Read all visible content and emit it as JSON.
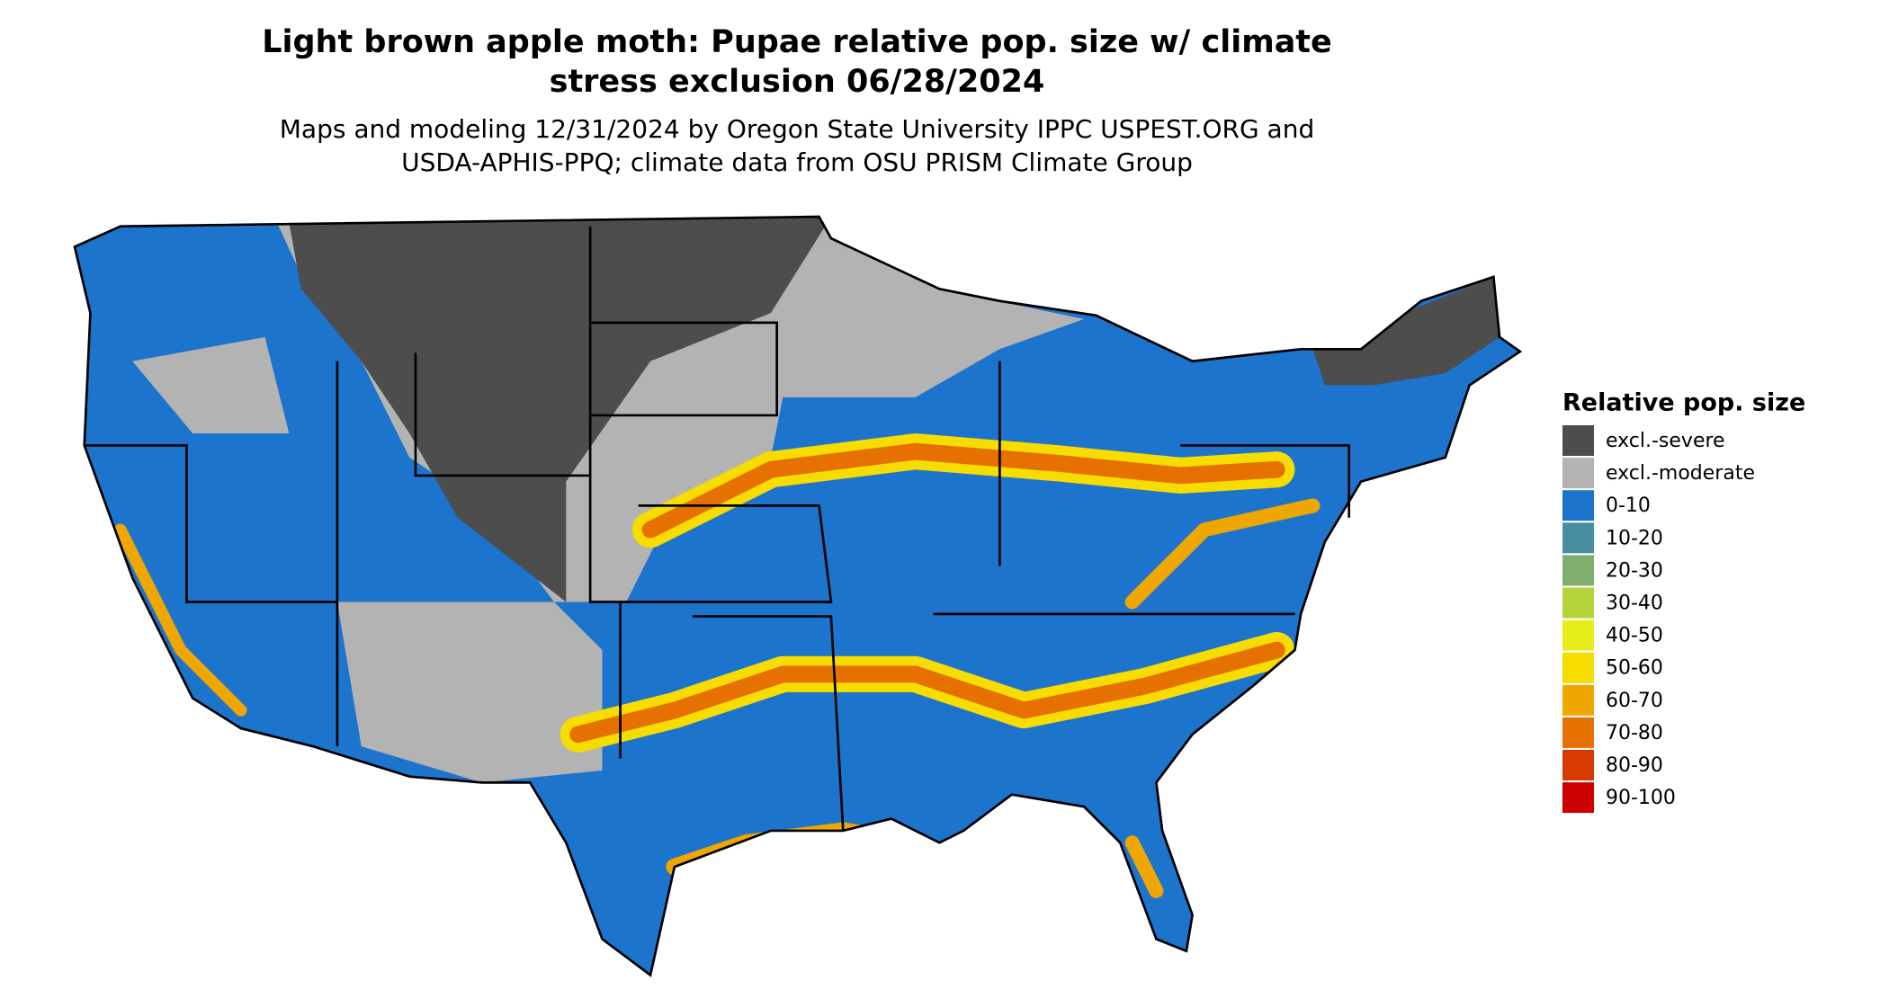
{
  "title": [
    "Light brown apple moth: Pupae relative pop. size w/ climate",
    "stress exclusion 06/28/2024"
  ],
  "subtitle": [
    "Maps and modeling 12/31/2024 by Oregon State University IPPC USPEST.ORG and",
    "USDA-APHIS-PPQ; climate data from OSU PRISM Climate Group"
  ],
  "legend": {
    "title": "Relative pop. size",
    "items": [
      {
        "label": "excl.-severe",
        "color": "#4d4d4d"
      },
      {
        "label": "excl.-moderate",
        "color": "#b3b3b3"
      },
      {
        "label": "0-10",
        "color": "#1c74cc"
      },
      {
        "label": "10-20",
        "color": "#4a8fa0"
      },
      {
        "label": "20-30",
        "color": "#80ae6e"
      },
      {
        "label": "30-40",
        "color": "#b4d23a"
      },
      {
        "label": "40-50",
        "color": "#e6ef1c"
      },
      {
        "label": "50-60",
        "color": "#f7dc00"
      },
      {
        "label": "60-70",
        "color": "#efa600"
      },
      {
        "label": "70-80",
        "color": "#e67000"
      },
      {
        "label": "80-90",
        "color": "#d83a00"
      },
      {
        "label": "90-100",
        "color": "#cc0000"
      }
    ]
  }
}
